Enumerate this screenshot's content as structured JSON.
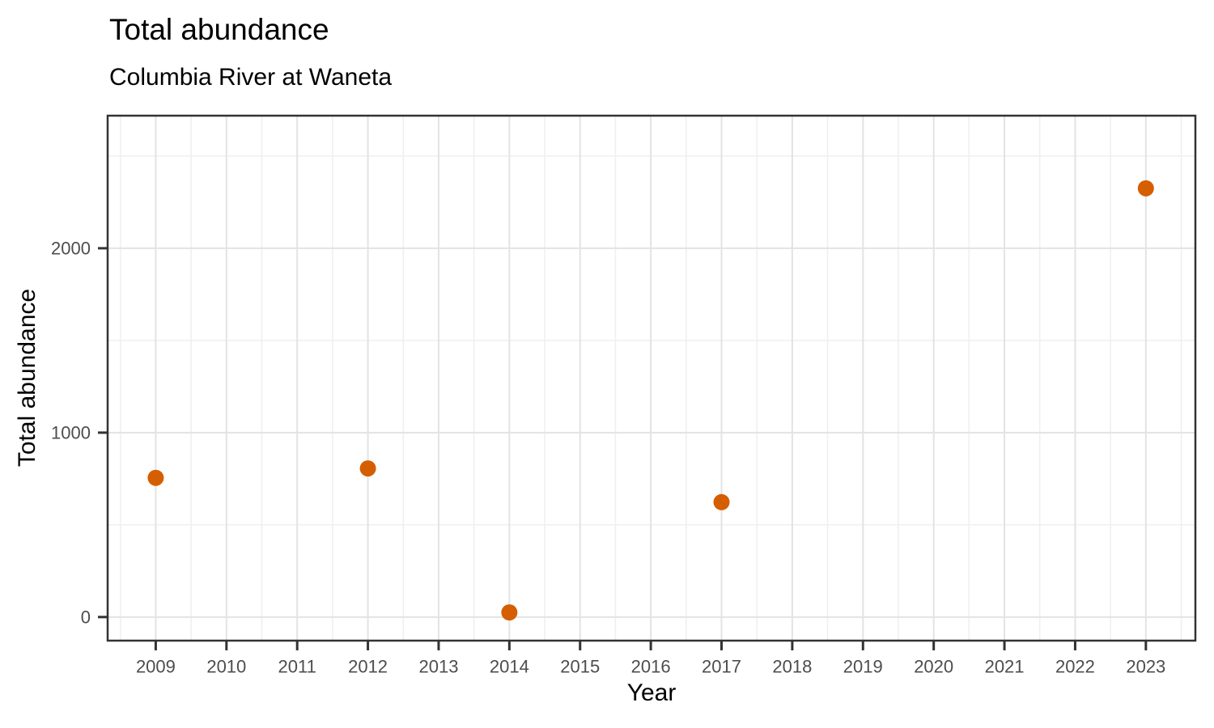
{
  "chart_data": {
    "type": "scatter",
    "title": "Total abundance",
    "subtitle": "Columbia River at Waneta",
    "xlabel": "Year",
    "ylabel": "Total abundance",
    "series": [
      {
        "name": "Total abundance",
        "points": [
          {
            "x": 2009,
            "y": 755
          },
          {
            "x": 2012,
            "y": 806
          },
          {
            "x": 2014,
            "y": 25
          },
          {
            "x": 2017,
            "y": 623
          },
          {
            "x": 2023,
            "y": 2325
          }
        ]
      }
    ],
    "xlim": [
      2008.32,
      2023.7
    ],
    "ylim": [
      -128,
      2719
    ],
    "x_ticks": [
      2009,
      2010,
      2011,
      2012,
      2013,
      2014,
      2015,
      2016,
      2017,
      2018,
      2019,
      2020,
      2021,
      2022,
      2023
    ],
    "x_tick_labels": [
      "2009",
      "2010",
      "2011",
      "2012",
      "2013",
      "2014",
      "2015",
      "2016",
      "2017",
      "2018",
      "2019",
      "2020",
      "2021",
      "2022",
      "2023"
    ],
    "x_minor": [
      2008.5,
      2009.5,
      2010.5,
      2011.5,
      2012.5,
      2013.5,
      2014.5,
      2015.5,
      2016.5,
      2017.5,
      2018.5,
      2019.5,
      2020.5,
      2021.5,
      2022.5,
      2023.5
    ],
    "y_ticks": [
      0,
      1000,
      2000
    ],
    "y_tick_labels": [
      "0",
      "1000",
      "2000"
    ],
    "y_minor": [
      500,
      1500,
      2500
    ],
    "grid": "on",
    "legend": "none",
    "point_radius_px": 10,
    "colors": {
      "point": "#D55E00",
      "panel_border": "#333333",
      "tick_mark": "#333333",
      "tick_label": "#4D4D4D",
      "grid_major": "#E3E3E3",
      "grid_minor": "#EFEFEF",
      "panel_background": "#FFFFFF",
      "plot_background": "#FFFFFF"
    }
  }
}
